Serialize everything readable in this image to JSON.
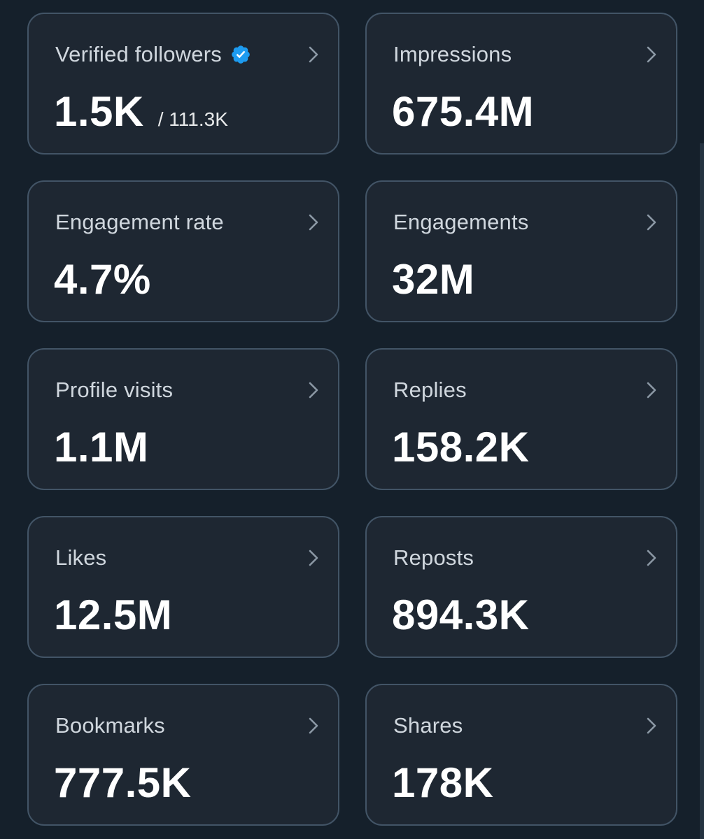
{
  "cards": [
    {
      "label": "Verified followers",
      "value": "1.5K",
      "suffix": "/ 111.3K",
      "icon": "verified-badge-icon"
    },
    {
      "label": "Impressions",
      "value": "675.4M"
    },
    {
      "label": "Engagement rate",
      "value": "4.7%"
    },
    {
      "label": "Engagements",
      "value": "32M"
    },
    {
      "label": "Profile visits",
      "value": "1.1M"
    },
    {
      "label": "Replies",
      "value": "158.2K"
    },
    {
      "label": "Likes",
      "value": "12.5M"
    },
    {
      "label": "Reposts",
      "value": "894.3K"
    },
    {
      "label": "Bookmarks",
      "value": "777.5K"
    },
    {
      "label": "Shares",
      "value": "178K"
    }
  ],
  "colors": {
    "background": "#15202b",
    "card_background": "#1e2732",
    "card_border": "#425466",
    "verified_blue": "#1d9bf0",
    "label_text": "#d0d7de",
    "value_text": "#ffffff"
  }
}
